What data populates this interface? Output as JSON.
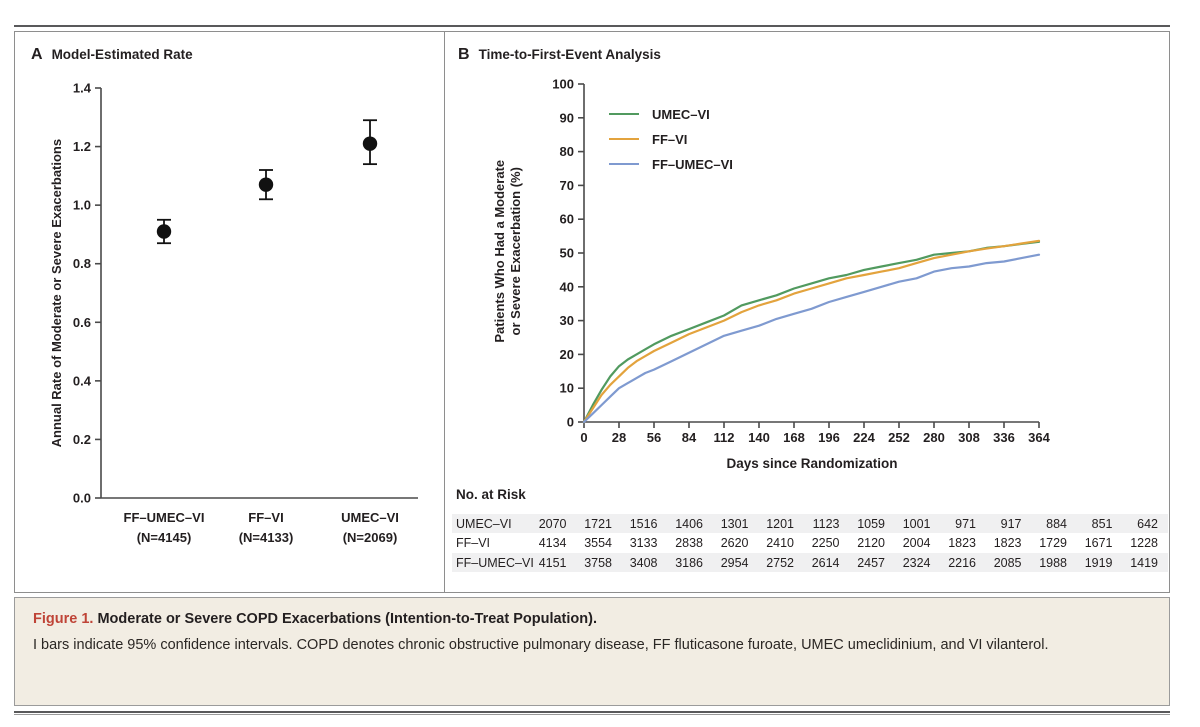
{
  "figure": {
    "caption_label": "Figure 1.",
    "caption_title": "Moderate or Severe COPD Exacerbations (Intention-to-Treat Population).",
    "caption_body": "I bars indicate 95% confidence intervals. COPD denotes chronic obstructive pulmonary disease, FF fluticasone furoate, UMEC umeclidinium, and VI vilanterol."
  },
  "colors": {
    "umec_vi_green": "#519a5f",
    "ff_vi_orange": "#e3a33d",
    "ff_umec_vi_blue": "#7f9ad0",
    "point_black": "#111111",
    "axis": "#4a4a4a",
    "text": "#231f20",
    "figure_label_red": "#bf4437",
    "caption_bg": "#f2ede3",
    "risk_row_shade": "#f0f0f1",
    "border_gray": "#8e8e8e"
  },
  "chart_data": [
    {
      "panel_label": "A",
      "type": "scatter",
      "title": "Model-Estimated Rate",
      "ylabel": "Annual Rate of Moderate or Severe Exacerbations",
      "ylim": [
        0.0,
        1.4
      ],
      "yticks": [
        0.0,
        0.2,
        0.4,
        0.6,
        0.8,
        1.0,
        1.2,
        1.4
      ],
      "grid": false,
      "points": [
        {
          "group": "FF–UMEC–VI",
          "n_label": "(N=4145)",
          "rate": 0.91,
          "ci_low": 0.87,
          "ci_high": 0.95
        },
        {
          "group": "FF–VI",
          "n_label": "(N=4133)",
          "rate": 1.07,
          "ci_low": 1.02,
          "ci_high": 1.12
        },
        {
          "group": "UMEC–VI",
          "n_label": "(N=2069)",
          "rate": 1.21,
          "ci_low": 1.14,
          "ci_high": 1.29
        }
      ]
    },
    {
      "panel_label": "B",
      "type": "line",
      "title": "Time-to-First-Event Analysis",
      "xlabel": "Days since Randomization",
      "ylabel_line1": "Patients Who Had a Moderate",
      "ylabel_line2": "or Severe Exacerbation (%)",
      "xlim": [
        0,
        364
      ],
      "ylim": [
        0,
        100
      ],
      "xticks": [
        0,
        28,
        56,
        84,
        112,
        140,
        168,
        196,
        224,
        252,
        280,
        308,
        336,
        364
      ],
      "yticks": [
        0,
        10,
        20,
        30,
        40,
        50,
        60,
        70,
        80,
        90,
        100
      ],
      "grid": false,
      "legend_position": "top-left-inside",
      "x": [
        0,
        7,
        14,
        21,
        28,
        35,
        42,
        49,
        56,
        70,
        84,
        98,
        112,
        126,
        140,
        154,
        168,
        182,
        196,
        210,
        224,
        238,
        252,
        266,
        280,
        294,
        308,
        322,
        336,
        350,
        364
      ],
      "series": [
        {
          "name": "UMEC–VI",
          "color": "#519a5f",
          "y": [
            0,
            5,
            9.5,
            13.5,
            16.5,
            18.5,
            20,
            21.5,
            23,
            25.5,
            27.5,
            29.5,
            31.5,
            34.5,
            36,
            37.5,
            39.5,
            41,
            42.5,
            43.5,
            45,
            46,
            47,
            48,
            49.5,
            50,
            50.5,
            51.5,
            52,
            52.7,
            53.3
          ]
        },
        {
          "name": "FF–VI",
          "color": "#e3a33d",
          "y": [
            0,
            4,
            8,
            11,
            13.5,
            16,
            18,
            19.5,
            21,
            23.5,
            26,
            28,
            30,
            32.5,
            34.5,
            36,
            38,
            39.5,
            41,
            42.5,
            43.5,
            44.5,
            45.5,
            47,
            48.5,
            49.5,
            50.5,
            51.3,
            52,
            52.8,
            53.6
          ]
        },
        {
          "name": "FF–UMEC–VI",
          "color": "#7f9ad0",
          "y": [
            0,
            2.5,
            5,
            7.5,
            10,
            11.5,
            13,
            14.5,
            15.5,
            18,
            20.5,
            23,
            25.5,
            27,
            28.5,
            30.5,
            32,
            33.5,
            35.5,
            37,
            38.5,
            40,
            41.5,
            42.5,
            44.5,
            45.5,
            46,
            47,
            47.5,
            48.5,
            49.5
          ]
        }
      ]
    },
    {
      "panel_label": "B",
      "type": "table",
      "title": "No. at Risk",
      "rows": [
        {
          "label": "UMEC–VI",
          "shaded": true,
          "values": [
            2070,
            1721,
            1516,
            1406,
            1301,
            1201,
            1123,
            1059,
            1001,
            971,
            917,
            884,
            851,
            642
          ]
        },
        {
          "label": "FF–VI",
          "shaded": false,
          "values": [
            4134,
            3554,
            3133,
            2838,
            2620,
            2410,
            2250,
            2120,
            2004,
            1823,
            1823,
            1729,
            1671,
            1228
          ]
        },
        {
          "label": "FF–UMEC–VI",
          "shaded": true,
          "values": [
            4151,
            3758,
            3408,
            3186,
            2954,
            2752,
            2614,
            2457,
            2324,
            2216,
            2085,
            1988,
            1919,
            1419
          ]
        }
      ]
    }
  ]
}
